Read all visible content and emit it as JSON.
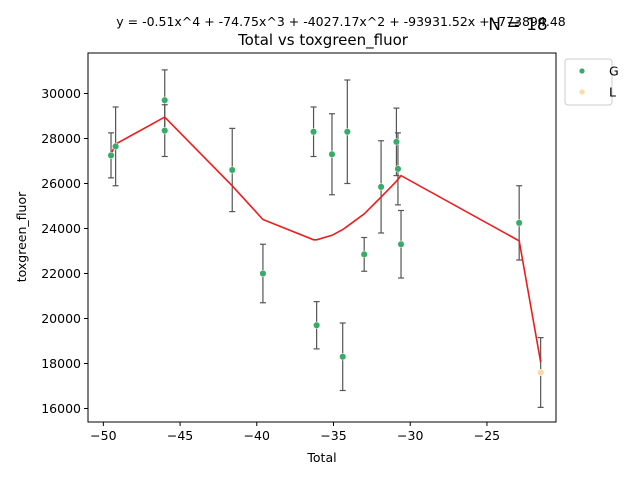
{
  "chart_data": {
    "type": "scatter",
    "title": "Total vs toxgreen_fluor",
    "equation": "y = -0.51x^4 + -74.75x^3 + -4027.17x^2 + -93931.52x + -773894.48",
    "n_label": "N = 18",
    "xlabel": "Total",
    "ylabel": "toxgreen_fluor",
    "xlim": [
      -51,
      -20.5
    ],
    "ylim": [
      15400,
      31800
    ],
    "xticks": [
      -50,
      -45,
      -40,
      -35,
      -30,
      -25
    ],
    "yticks": [
      16000,
      18000,
      20000,
      22000,
      24000,
      26000,
      28000,
      30000
    ],
    "grid": false,
    "legend_position": "upper-right-outside",
    "series": [
      {
        "name": "G",
        "color": "#3aaa6a",
        "points": [
          {
            "x": -49.5,
            "y": 27250,
            "err": 1000
          },
          {
            "x": -49.2,
            "y": 27650,
            "err": 1750
          },
          {
            "x": -46.0,
            "y": 29700,
            "err": 1350
          },
          {
            "x": -46.0,
            "y": 28350,
            "err": 1150
          },
          {
            "x": -41.6,
            "y": 26600,
            "err": 1850
          },
          {
            "x": -39.6,
            "y": 22000,
            "err": 1300
          },
          {
            "x": -36.3,
            "y": 28300,
            "err": 1100
          },
          {
            "x": -36.1,
            "y": 19700,
            "err": 1050
          },
          {
            "x": -35.1,
            "y": 27300,
            "err": 1800
          },
          {
            "x": -34.4,
            "y": 18300,
            "err": 1500
          },
          {
            "x": -34.1,
            "y": 28300,
            "err": 2300
          },
          {
            "x": -33.0,
            "y": 22850,
            "err": 750
          },
          {
            "x": -31.9,
            "y": 25850,
            "err": 2050
          },
          {
            "x": -30.9,
            "y": 27850,
            "err": 1500
          },
          {
            "x": -30.8,
            "y": 26650,
            "err": 1600
          },
          {
            "x": -30.6,
            "y": 23300,
            "err": 1500
          },
          {
            "x": -22.9,
            "y": 24250,
            "err": 1650
          }
        ]
      },
      {
        "name": "L",
        "color": "#ffd8a8",
        "points": [
          {
            "x": -21.5,
            "y": 17600,
            "err": 1550
          }
        ]
      }
    ],
    "fit_line": {
      "color": "#ee1c1c",
      "points": [
        {
          "x": -49.5,
          "y": 27300
        },
        {
          "x": -49.2,
          "y": 27750
        },
        {
          "x": -46.0,
          "y": 28950
        },
        {
          "x": -41.6,
          "y": 25900
        },
        {
          "x": -39.6,
          "y": 24400
        },
        {
          "x": -36.3,
          "y": 23500
        },
        {
          "x": -36.1,
          "y": 23500
        },
        {
          "x": -35.1,
          "y": 23700
        },
        {
          "x": -34.4,
          "y": 23950
        },
        {
          "x": -34.1,
          "y": 24100
        },
        {
          "x": -33.0,
          "y": 24650
        },
        {
          "x": -31.9,
          "y": 25400
        },
        {
          "x": -30.9,
          "y": 26100
        },
        {
          "x": -30.6,
          "y": 26350
        },
        {
          "x": -22.9,
          "y": 23450
        },
        {
          "x": -21.5,
          "y": 18050
        }
      ]
    },
    "errorbar_color": "#555555"
  }
}
